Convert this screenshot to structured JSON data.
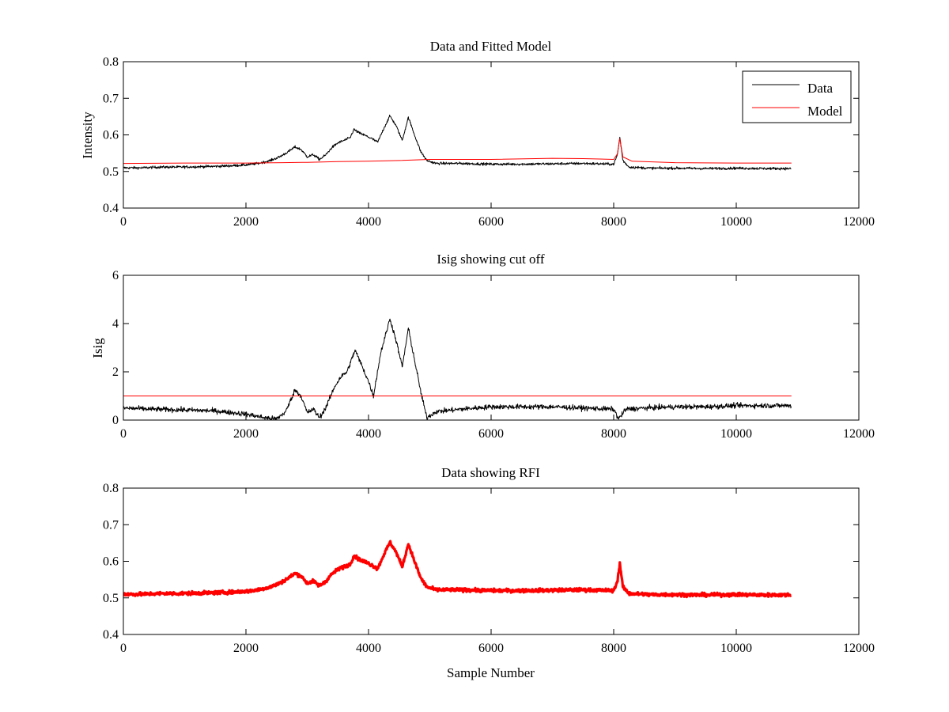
{
  "figure": {
    "background": "#ffffff"
  },
  "chart_data": [
    {
      "type": "line",
      "title": "Data and Fitted Model",
      "xlabel": "",
      "ylabel": "Intensity",
      "xlim": [
        0,
        12000
      ],
      "ylim": [
        0.4,
        0.8
      ],
      "xticks": [
        0,
        2000,
        4000,
        6000,
        8000,
        10000,
        12000
      ],
      "yticks": [
        0.4,
        0.5,
        0.6,
        0.7,
        0.8
      ],
      "grid": false,
      "legend": "top-right",
      "series": [
        {
          "name": "Data",
          "color": "#000000",
          "noise": 0.006,
          "points": [
            [
              0,
              0.51
            ],
            [
              300,
              0.51
            ],
            [
              600,
              0.512
            ],
            [
              900,
              0.512
            ],
            [
              1200,
              0.513
            ],
            [
              1500,
              0.514
            ],
            [
              1800,
              0.516
            ],
            [
              2000,
              0.518
            ],
            [
              2200,
              0.522
            ],
            [
              2400,
              0.53
            ],
            [
              2550,
              0.54
            ],
            [
              2700,
              0.555
            ],
            [
              2800,
              0.567
            ],
            [
              2900,
              0.56
            ],
            [
              3000,
              0.54
            ],
            [
              3100,
              0.546
            ],
            [
              3200,
              0.533
            ],
            [
              3300,
              0.545
            ],
            [
              3400,
              0.565
            ],
            [
              3500,
              0.578
            ],
            [
              3600,
              0.585
            ],
            [
              3700,
              0.592
            ],
            [
              3760,
              0.615
            ],
            [
              3850,
              0.605
            ],
            [
              3950,
              0.598
            ],
            [
              4050,
              0.59
            ],
            [
              4150,
              0.58
            ],
            [
              4250,
              0.618
            ],
            [
              4350,
              0.652
            ],
            [
              4450,
              0.625
            ],
            [
              4550,
              0.585
            ],
            [
              4650,
              0.648
            ],
            [
              4750,
              0.6
            ],
            [
              4850,
              0.555
            ],
            [
              4950,
              0.53
            ],
            [
              5100,
              0.522
            ],
            [
              5500,
              0.522
            ],
            [
              6000,
              0.52
            ],
            [
              6500,
              0.52
            ],
            [
              7000,
              0.521
            ],
            [
              7500,
              0.522
            ],
            [
              8000,
              0.52
            ],
            [
              8060,
              0.545
            ],
            [
              8100,
              0.594
            ],
            [
              8150,
              0.53
            ],
            [
              8250,
              0.512
            ],
            [
              8600,
              0.509
            ],
            [
              9000,
              0.509
            ],
            [
              9500,
              0.508
            ],
            [
              10000,
              0.509
            ],
            [
              10500,
              0.508
            ],
            [
              10900,
              0.508
            ]
          ]
        },
        {
          "name": "Model",
          "color": "#ff0000",
          "noise": 0,
          "points": [
            [
              0,
              0.522
            ],
            [
              1000,
              0.523
            ],
            [
              2000,
              0.523
            ],
            [
              2600,
              0.524
            ],
            [
              3000,
              0.525
            ],
            [
              3500,
              0.527
            ],
            [
              4000,
              0.528
            ],
            [
              4500,
              0.53
            ],
            [
              5000,
              0.533
            ],
            [
              6000,
              0.533
            ],
            [
              7000,
              0.536
            ],
            [
              7500,
              0.535
            ],
            [
              8000,
              0.533
            ],
            [
              8060,
              0.548
            ],
            [
              8100,
              0.59
            ],
            [
              8150,
              0.54
            ],
            [
              8300,
              0.528
            ],
            [
              9000,
              0.524
            ],
            [
              10000,
              0.523
            ],
            [
              10900,
              0.523
            ]
          ]
        }
      ]
    },
    {
      "type": "line",
      "title": "Isig showing cut off",
      "xlabel": "",
      "ylabel": "Isig",
      "xlim": [
        0,
        12000
      ],
      "ylim": [
        0,
        6
      ],
      "xticks": [
        0,
        2000,
        4000,
        6000,
        8000,
        10000,
        12000
      ],
      "yticks": [
        0,
        2,
        4,
        6
      ],
      "grid": false,
      "series": [
        {
          "color": "#000000",
          "noise": 0.18,
          "points": [
            [
              0,
              0.5
            ],
            [
              500,
              0.45
            ],
            [
              1000,
              0.42
            ],
            [
              1500,
              0.38
            ],
            [
              2000,
              0.25
            ],
            [
              2300,
              0.1
            ],
            [
              2500,
              0.05
            ],
            [
              2650,
              0.35
            ],
            [
              2800,
              1.25
            ],
            [
              2900,
              1.0
            ],
            [
              3000,
              0.3
            ],
            [
              3100,
              0.45
            ],
            [
              3200,
              0.1
            ],
            [
              3300,
              0.5
            ],
            [
              3450,
              1.4
            ],
            [
              3550,
              1.8
            ],
            [
              3650,
              2.0
            ],
            [
              3780,
              2.9
            ],
            [
              3900,
              2.2
            ],
            [
              4000,
              1.6
            ],
            [
              4080,
              1.0
            ],
            [
              4200,
              2.8
            ],
            [
              4350,
              4.2
            ],
            [
              4450,
              3.3
            ],
            [
              4550,
              2.2
            ],
            [
              4650,
              3.8
            ],
            [
              4750,
              2.5
            ],
            [
              4850,
              1.2
            ],
            [
              4950,
              0.1
            ],
            [
              5100,
              0.35
            ],
            [
              5500,
              0.45
            ],
            [
              6000,
              0.55
            ],
            [
              6500,
              0.55
            ],
            [
              7000,
              0.55
            ],
            [
              7500,
              0.5
            ],
            [
              8000,
              0.45
            ],
            [
              8080,
              0.05
            ],
            [
              8200,
              0.45
            ],
            [
              8500,
              0.5
            ],
            [
              9000,
              0.55
            ],
            [
              9500,
              0.55
            ],
            [
              10000,
              0.6
            ],
            [
              10500,
              0.6
            ],
            [
              10900,
              0.6
            ]
          ]
        },
        {
          "color": "#ff0000",
          "noise": 0,
          "points": [
            [
              0,
              1.0
            ],
            [
              10900,
              1.0
            ]
          ]
        }
      ]
    },
    {
      "type": "line",
      "title": "Data showing RFI",
      "xlabel": "Sample Number",
      "ylabel": "",
      "xlim": [
        0,
        12000
      ],
      "ylim": [
        0.4,
        0.8
      ],
      "xticks": [
        0,
        2000,
        4000,
        6000,
        8000,
        10000,
        12000
      ],
      "yticks": [
        0.4,
        0.5,
        0.6,
        0.7,
        0.8
      ],
      "grid": false,
      "series": [
        {
          "color": "#ff0000",
          "noise": 0.008,
          "thick": true,
          "points": [
            [
              0,
              0.51
            ],
            [
              300,
              0.51
            ],
            [
              600,
              0.512
            ],
            [
              900,
              0.512
            ],
            [
              1200,
              0.513
            ],
            [
              1500,
              0.514
            ],
            [
              1800,
              0.516
            ],
            [
              2000,
              0.518
            ],
            [
              2200,
              0.522
            ],
            [
              2400,
              0.53
            ],
            [
              2550,
              0.54
            ],
            [
              2700,
              0.555
            ],
            [
              2800,
              0.567
            ],
            [
              2900,
              0.56
            ],
            [
              3000,
              0.54
            ],
            [
              3100,
              0.546
            ],
            [
              3200,
              0.533
            ],
            [
              3300,
              0.545
            ],
            [
              3400,
              0.565
            ],
            [
              3500,
              0.578
            ],
            [
              3600,
              0.585
            ],
            [
              3700,
              0.592
            ],
            [
              3760,
              0.615
            ],
            [
              3850,
              0.605
            ],
            [
              3950,
              0.598
            ],
            [
              4050,
              0.59
            ],
            [
              4150,
              0.58
            ],
            [
              4250,
              0.618
            ],
            [
              4350,
              0.652
            ],
            [
              4450,
              0.625
            ],
            [
              4550,
              0.585
            ],
            [
              4650,
              0.648
            ],
            [
              4750,
              0.6
            ],
            [
              4850,
              0.555
            ],
            [
              4950,
              0.53
            ],
            [
              5100,
              0.522
            ],
            [
              5500,
              0.522
            ],
            [
              6000,
              0.52
            ],
            [
              6500,
              0.52
            ],
            [
              7000,
              0.521
            ],
            [
              7500,
              0.522
            ],
            [
              8000,
              0.52
            ],
            [
              8060,
              0.545
            ],
            [
              8100,
              0.594
            ],
            [
              8150,
              0.53
            ],
            [
              8250,
              0.512
            ],
            [
              8600,
              0.509
            ],
            [
              9000,
              0.509
            ],
            [
              9500,
              0.508
            ],
            [
              10000,
              0.509
            ],
            [
              10500,
              0.508
            ],
            [
              10900,
              0.508
            ]
          ]
        }
      ]
    }
  ]
}
